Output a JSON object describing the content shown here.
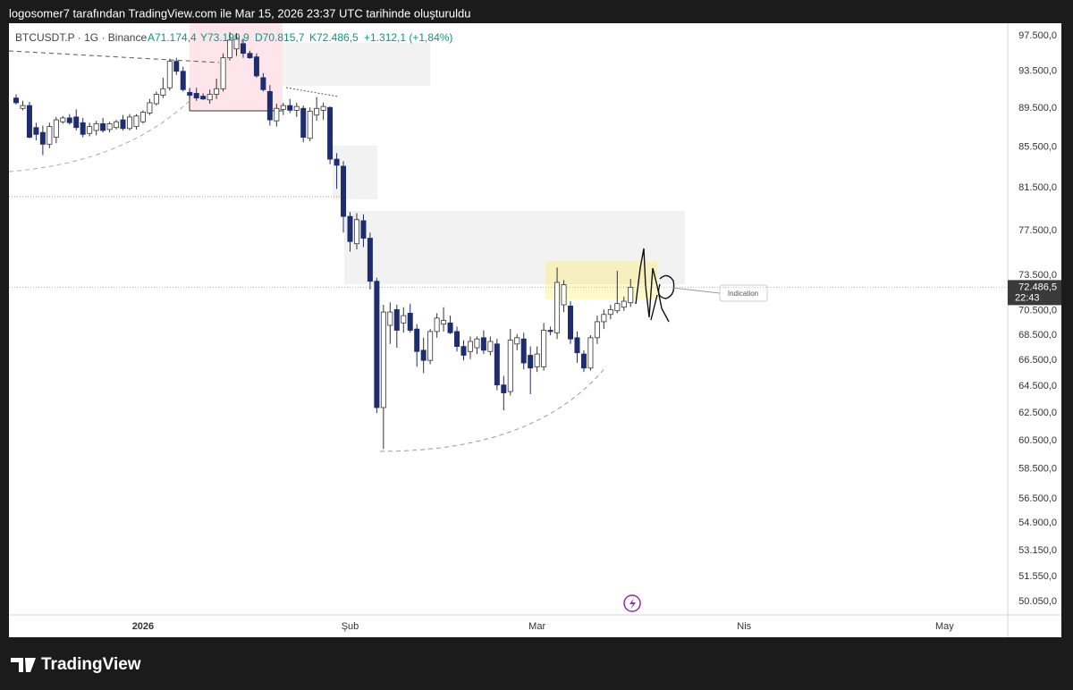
{
  "header": {
    "text": "logosomer7 tarafından TradingView.com ile Mar 15, 2026 23:37 UTC tarihinde oluşturuldu"
  },
  "chart_data": {
    "type": "candlestick",
    "symbol": "BTCUSDT.P · 1G · Binance",
    "legend_values": [
      "A71.174,4",
      "Y73.199,9",
      "D70.815,7",
      "K72.486,5",
      "+1.312,1 (+1,84%)"
    ],
    "categories": [
      null,
      null,
      null,
      null,
      null,
      null,
      null,
      null,
      null,
      null,
      null,
      null,
      null,
      null,
      null,
      null,
      null,
      null,
      null,
      "2026",
      null,
      null,
      null,
      null,
      null,
      null,
      null,
      null,
      null,
      null,
      null,
      null,
      null,
      null,
      null,
      null,
      null,
      null,
      null,
      null,
      null,
      null,
      null,
      null,
      null,
      null,
      null,
      null,
      null,
      null,
      "Şub",
      null,
      null,
      null,
      null,
      null,
      null,
      null,
      null,
      null,
      null,
      null,
      null,
      null,
      null,
      null,
      null,
      null,
      null,
      null,
      null,
      null,
      null,
      null,
      null,
      null,
      null,
      null,
      "Mar",
      null,
      null,
      null,
      null,
      null,
      null,
      null,
      null,
      null,
      null,
      null,
      null,
      null,
      null,
      null,
      null,
      null,
      null,
      null,
      null,
      null,
      null,
      null,
      null,
      null,
      null,
      null,
      null,
      null,
      null,
      "Nis",
      null,
      null,
      null,
      null,
      null,
      null,
      null,
      null,
      null,
      null,
      null,
      null,
      null,
      null,
      null,
      null,
      null,
      null,
      null,
      null,
      null,
      null,
      null,
      null,
      null,
      null,
      null,
      null,
      null,
      "May",
      null,
      null,
      null,
      null,
      null,
      null,
      null,
      null,
      null
    ],
    "open": [
      90600,
      89500,
      89800,
      87500,
      87000,
      85800,
      86500,
      88100,
      88500,
      88600,
      88000,
      86900,
      87200,
      87900,
      87300,
      87500,
      88300,
      87400,
      87600,
      88100,
      89000,
      90000,
      90900,
      91700,
      94600,
      93500,
      91200,
      91100,
      90800,
      90400,
      91000,
      91600,
      95000,
      96000,
      96600,
      95500,
      95100,
      92800,
      91300,
      88200,
      89400,
      89800,
      89300,
      89500,
      86400,
      88800,
      89300,
      89600,
      84300,
      83600,
      78800,
      76300,
      78400,
      76800,
      73000,
      62900,
      69300,
      70600,
      69500,
      70300,
      69000,
      67300,
      66500,
      68800,
      69400,
      69500,
      68800,
      67600,
      67200,
      67500,
      68300,
      67200,
      67800,
      64600,
      64100,
      67800,
      68200,
      66900,
      66000,
      66000,
      68900,
      68700,
      71000,
      70900,
      68300,
      67000,
      65900,
      68300,
      69600,
      70200,
      70500,
      70800,
      71174.4,
      null,
      null,
      null,
      null,
      null,
      null,
      null,
      null,
      null,
      null,
      null,
      null,
      null,
      null,
      null,
      null,
      null,
      null,
      null,
      null,
      null,
      null,
      null,
      null,
      null,
      null,
      null,
      null,
      null,
      null,
      null,
      null,
      null,
      null,
      null,
      null,
      null,
      null,
      null,
      null,
      null,
      null,
      null,
      null,
      null,
      null,
      null,
      null,
      null,
      null,
      null,
      null,
      null,
      null,
      null,
      null
    ],
    "high": [
      91000,
      90300,
      90200,
      88000,
      87700,
      88000,
      88600,
      88700,
      88900,
      89400,
      88500,
      88000,
      88200,
      88500,
      88100,
      88300,
      88800,
      88900,
      88900,
      89300,
      90500,
      91300,
      92800,
      94900,
      95000,
      94000,
      91700,
      91700,
      91100,
      91500,
      92700,
      95500,
      97900,
      97800,
      97200,
      95800,
      95500,
      93300,
      92000,
      90000,
      90100,
      90500,
      90100,
      89800,
      89600,
      90700,
      90100,
      89700,
      84900,
      84100,
      79200,
      79100,
      79000,
      77300,
      73300,
      71000,
      71200,
      71000,
      70800,
      71100,
      69400,
      68300,
      69000,
      70300,
      70800,
      70100,
      69200,
      68100,
      68400,
      68400,
      68900,
      68400,
      68200,
      65300,
      69000,
      68600,
      68700,
      67600,
      67600,
      69500,
      69200,
      74200,
      73100,
      71300,
      68800,
      67300,
      68500,
      70100,
      70600,
      71000,
      73900,
      71700,
      73199.9,
      null,
      null,
      null,
      null,
      null,
      null,
      null,
      null,
      null,
      null,
      null,
      null,
      null,
      null,
      null,
      null,
      null,
      null,
      null,
      null,
      null,
      null,
      null,
      null,
      null,
      null,
      null,
      null,
      null,
      null,
      null,
      null,
      null,
      null,
      null,
      null,
      null,
      null,
      null,
      null,
      null,
      null,
      null,
      null,
      null,
      null,
      null,
      null,
      null,
      null,
      null,
      null,
      null,
      null,
      null,
      null
    ],
    "low": [
      89900,
      89300,
      86400,
      86200,
      84700,
      85400,
      85900,
      87900,
      87800,
      87200,
      86500,
      86600,
      86700,
      87000,
      87000,
      87300,
      87200,
      87200,
      87300,
      87900,
      88800,
      89800,
      90600,
      91400,
      93100,
      91300,
      90600,
      90300,
      90400,
      90000,
      90500,
      91300,
      94700,
      95200,
      95000,
      94900,
      92800,
      91300,
      87700,
      87600,
      88800,
      89000,
      88600,
      86000,
      86100,
      88200,
      88300,
      83800,
      81400,
      77300,
      75600,
      75800,
      76000,
      72300,
      62500,
      59900,
      67800,
      67500,
      68700,
      68700,
      66000,
      65500,
      66200,
      68300,
      68800,
      68600,
      67200,
      66500,
      66600,
      67000,
      67000,
      66900,
      64200,
      62700,
      63800,
      67300,
      65800,
      63900,
      65600,
      65700,
      68500,
      68200,
      70400,
      67800,
      66300,
      65600,
      65700,
      67800,
      69000,
      69800,
      70300,
      70500,
      70815.7,
      null,
      null,
      null,
      null,
      null,
      null,
      null,
      null,
      null,
      null,
      null,
      null,
      null,
      null,
      null,
      null,
      null,
      null,
      null,
      null,
      null,
      null,
      null,
      null,
      null,
      null,
      null,
      null,
      null,
      null,
      null,
      null,
      null,
      null,
      null,
      null,
      null,
      null,
      null,
      null,
      null,
      null,
      null,
      null,
      null,
      null,
      null,
      null,
      null,
      null,
      null,
      null,
      null,
      null,
      null,
      null
    ],
    "close": [
      90100,
      89800,
      86500,
      86800,
      85800,
      87600,
      88300,
      88500,
      88000,
      87500,
      86800,
      87600,
      87900,
      87200,
      87900,
      88100,
      87400,
      88600,
      88700,
      89100,
      90100,
      91000,
      91600,
      94600,
      93500,
      91500,
      90900,
      90600,
      90500,
      91000,
      91600,
      95000,
      97000,
      97100,
      95500,
      95000,
      93000,
      91500,
      88300,
      89500,
      89800,
      89300,
      89700,
      86500,
      89200,
      89500,
      89700,
      84300,
      83700,
      78800,
      76500,
      78500,
      76800,
      73000,
      62900,
      70400,
      70400,
      68900,
      70100,
      68900,
      67200,
      66500,
      68800,
      69900,
      69700,
      68700,
      67600,
      66900,
      68000,
      68200,
      67300,
      68000,
      64600,
      64000,
      68100,
      68300,
      66300,
      65900,
      67000,
      68900,
      68800,
      72900,
      72700,
      68200,
      67100,
      65900,
      68300,
      69600,
      70200,
      70600,
      71100,
      71300,
      72486.5,
      null,
      null,
      null,
      null,
      null,
      null,
      null,
      null,
      null,
      null,
      null,
      null,
      null,
      null,
      null,
      null,
      null,
      null,
      null,
      null,
      null,
      null,
      null,
      null,
      null,
      null,
      null,
      null,
      null,
      null,
      null,
      null,
      null,
      null,
      null,
      null,
      null,
      null,
      null,
      null,
      null,
      null,
      null,
      null,
      null,
      null,
      null,
      null,
      null,
      null,
      null,
      null,
      null,
      null,
      null,
      null
    ],
    "up_color": "#ffffff",
    "down_color": "#1f2d6e",
    "ylim": [
      49260,
      98950
    ],
    "log_scale": true,
    "grid": false,
    "yticks": [
      {
        "value": 97500,
        "label": "97.500,0"
      },
      {
        "value": 93500,
        "label": "93.500,0"
      },
      {
        "value": 89500,
        "label": "89.500,0"
      },
      {
        "value": 85500,
        "label": "85.500,0"
      },
      {
        "value": 81500,
        "label": "81.500,0"
      },
      {
        "value": 77500,
        "label": "77.500,0"
      },
      {
        "value": 73500,
        "label": "73.500,0"
      },
      {
        "value": 70500,
        "label": "70.500,0"
      },
      {
        "value": 68500,
        "label": "68.500,0"
      },
      {
        "value": 66500,
        "label": "66.500,0"
      },
      {
        "value": 64500,
        "label": "64.500,0"
      },
      {
        "value": 62500,
        "label": "62.500,0"
      },
      {
        "value": 60500,
        "label": "60.500,0"
      },
      {
        "value": 58500,
        "label": "58.500,0"
      },
      {
        "value": 56500,
        "label": "56.500,0"
      },
      {
        "value": 54900,
        "label": "54.900,0"
      },
      {
        "value": 53150,
        "label": "53.150,0"
      },
      {
        "value": 51550,
        "label": "51.550,0"
      },
      {
        "value": 50050,
        "label": "50.050,0"
      }
    ],
    "last_price": {
      "value": 72486.5,
      "label": "72.486,5"
    },
    "countdown": "22:43",
    "annotation": "Indication"
  },
  "footer": {
    "brand": "TradingView"
  }
}
